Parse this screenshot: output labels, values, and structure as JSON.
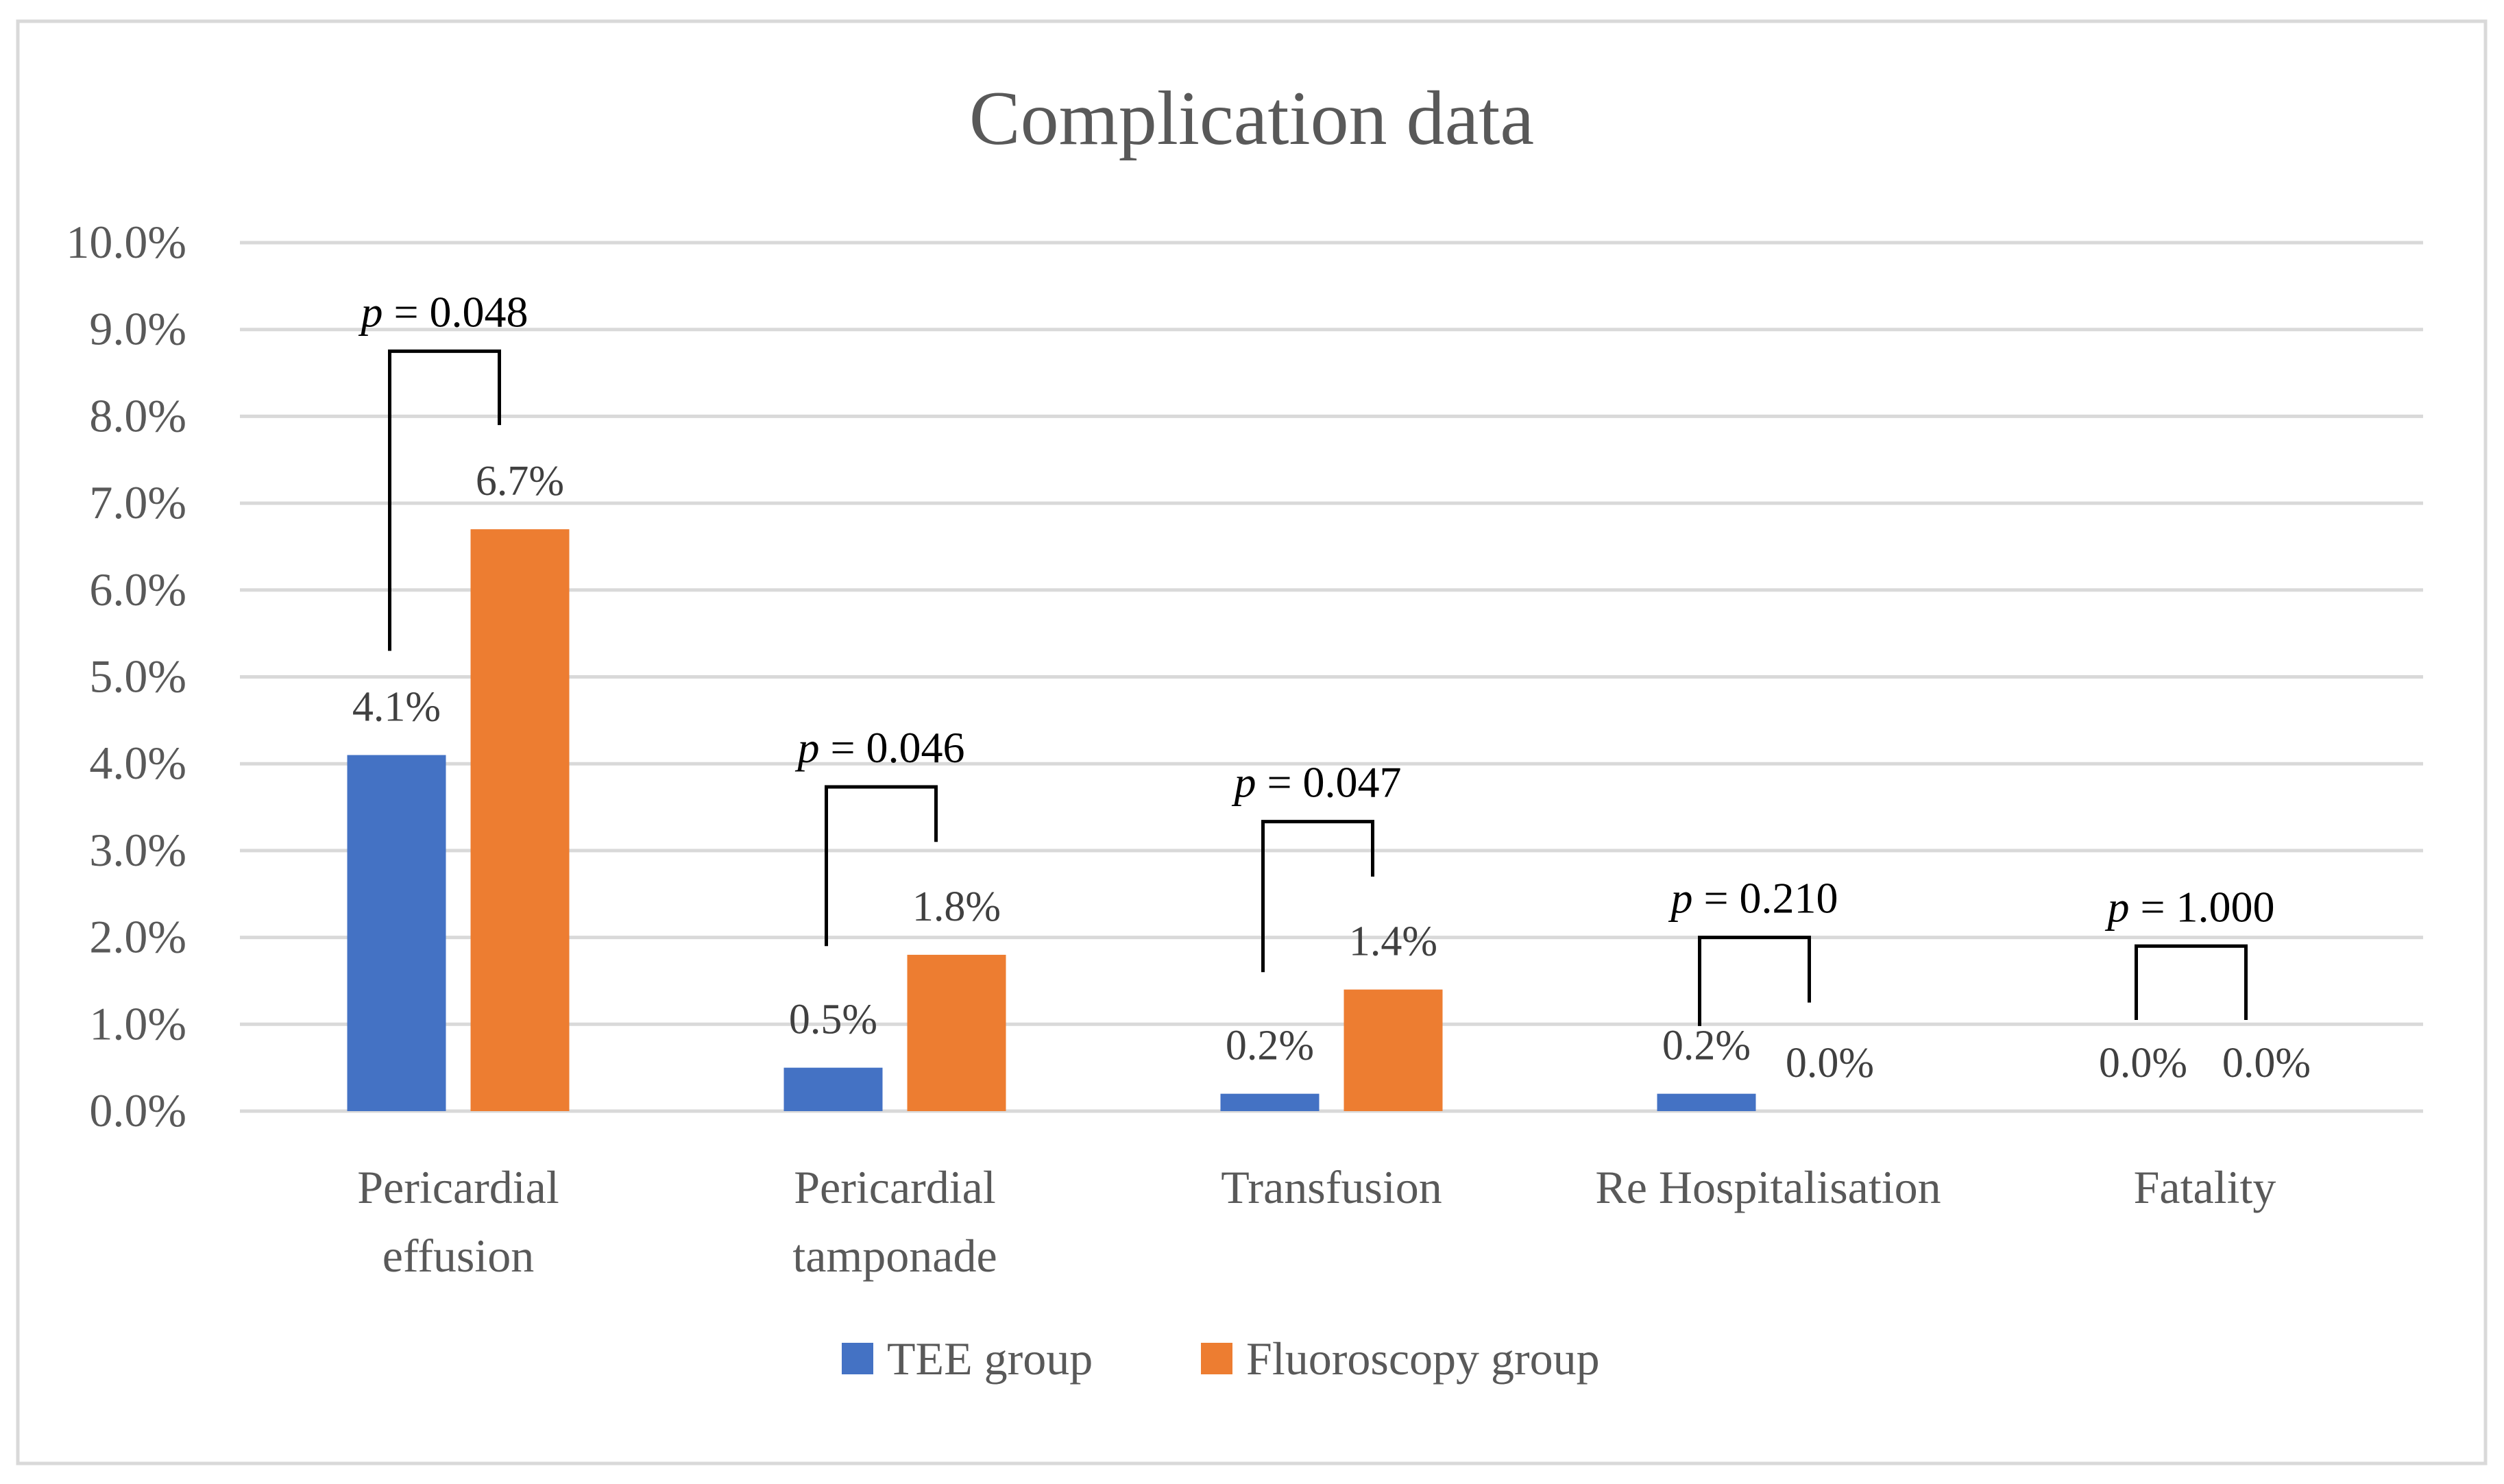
{
  "chart_data": {
    "type": "bar",
    "title": "Complication data",
    "xlabel": "",
    "ylabel": "",
    "ylim": [
      0,
      0.1
    ],
    "yticks": [
      "0.0%",
      "1.0%",
      "2.0%",
      "3.0%",
      "4.0%",
      "5.0%",
      "6.0%",
      "7.0%",
      "8.0%",
      "9.0%",
      "10.0%"
    ],
    "grid": true,
    "legend_position": "bottom",
    "categories": [
      [
        "Pericardial",
        "effusion"
      ],
      [
        "Pericardial",
        "tamponade"
      ],
      [
        "Transfusion"
      ],
      [
        "Re Hospitalisation"
      ],
      [
        "Fatality"
      ]
    ],
    "series": [
      {
        "name": "TEE group",
        "color": "#4472C4",
        "values": [
          0.041,
          0.005,
          0.002,
          0.002,
          0.0
        ],
        "labels": [
          "4.1%",
          "0.5%",
          "0.2%",
          "0.2%",
          "0.0%"
        ]
      },
      {
        "name": "Fluoroscopy group",
        "color": "#ED7D31",
        "values": [
          0.067,
          0.018,
          0.014,
          0.0,
          0.0
        ],
        "labels": [
          "6.7%",
          "1.8%",
          "1.4%",
          "0.0%",
          "0.0%"
        ]
      }
    ],
    "annotations": [
      {
        "p_symbol": "p",
        "text": "= 0.048"
      },
      {
        "p_symbol": "p",
        "text": "= 0.046"
      },
      {
        "p_symbol": "p",
        "text": "= 0.047"
      },
      {
        "p_symbol": "p",
        "text": "= 0.210"
      },
      {
        "p_symbol": "p",
        "text": "= 1.000"
      }
    ]
  }
}
